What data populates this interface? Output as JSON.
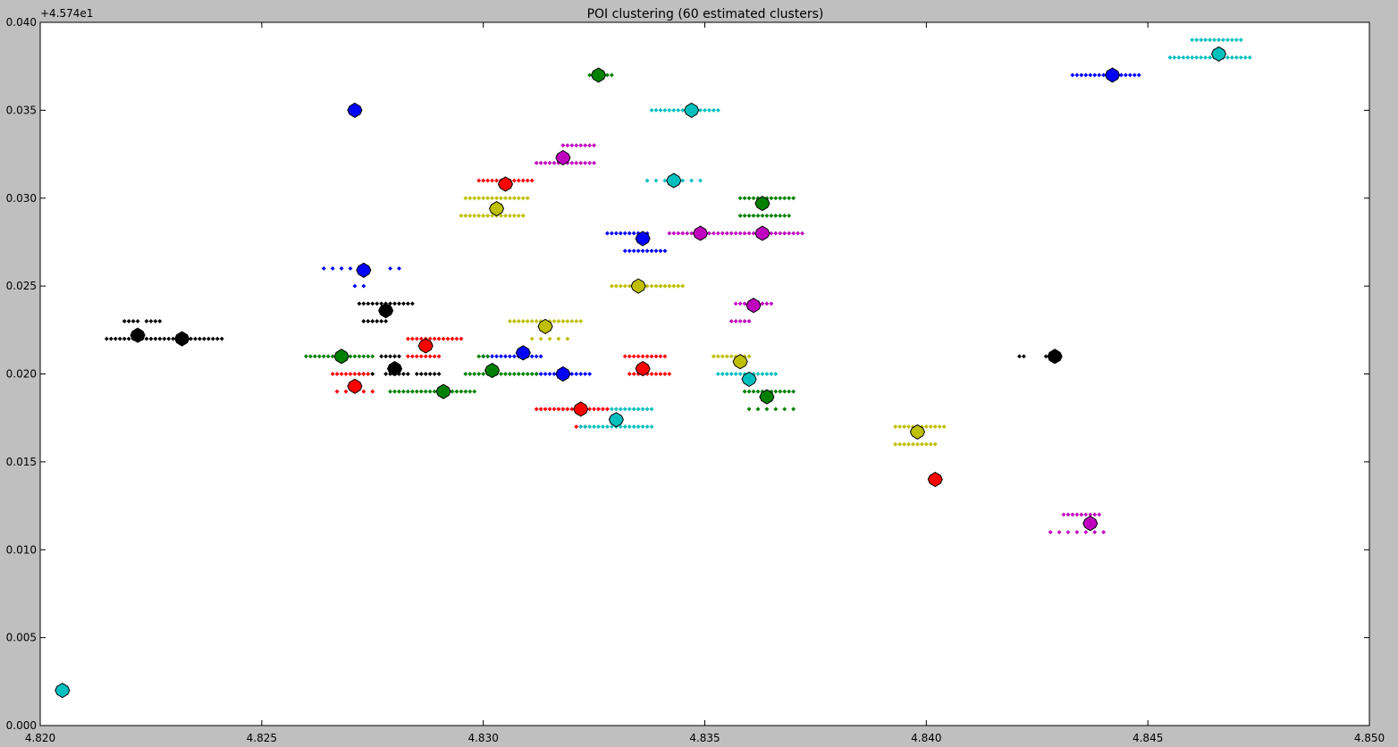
{
  "chart_data": {
    "type": "scatter",
    "title": "POI clustering (60 estimated clusters)",
    "xlabel": "",
    "ylabel": "",
    "xlim": [
      4.82,
      4.85
    ],
    "ylim": [
      0.0,
      0.04
    ],
    "y_offset_label": "+4.574e1",
    "x_ticks": [
      "4.820",
      "4.825",
      "4.830",
      "4.835",
      "4.840",
      "4.845",
      "4.850"
    ],
    "y_ticks": [
      "0.000",
      "0.005",
      "0.010",
      "0.015",
      "0.020",
      "0.025",
      "0.030",
      "0.035",
      "0.040"
    ],
    "grid": false,
    "legend": "none",
    "colors": {
      "b": "#0000ff",
      "g": "#008000",
      "r": "#ff0000",
      "c": "#00bfbf",
      "m": "#bf00bf",
      "y": "#bfbf00",
      "k": "#000000"
    },
    "point_groups": [
      {
        "color": "k",
        "y": 0.022,
        "x_from": 4.8215,
        "x_to": 4.8238,
        "step": 0.0001
      },
      {
        "color": "k",
        "y": 0.022,
        "x_from": 4.8239,
        "x_to": 4.8241,
        "step": 0.0001
      },
      {
        "color": "k",
        "y": 0.023,
        "x_from": 4.8219,
        "x_to": 4.8222,
        "step": 0.0001
      },
      {
        "color": "k",
        "y": 0.023,
        "x_from": 4.8224,
        "x_to": 4.8227,
        "step": 0.0001
      },
      {
        "color": "k",
        "y": 0.024,
        "x_from": 4.8272,
        "x_to": 4.8284,
        "step": 0.0001
      },
      {
        "color": "k",
        "y": 0.023,
        "x_from": 4.8273,
        "x_to": 4.8278,
        "step": 0.0001
      },
      {
        "color": "k",
        "y": 0.021,
        "x_from": 4.8277,
        "x_to": 4.8281,
        "step": 0.0001
      },
      {
        "color": "k",
        "y": 0.02,
        "x_from": 4.8272,
        "x_to": 4.8275,
        "step": 0.0001
      },
      {
        "color": "k",
        "y": 0.02,
        "x_from": 4.8278,
        "x_to": 4.8283,
        "step": 0.0001
      },
      {
        "color": "k",
        "y": 0.02,
        "x_from": 4.8285,
        "x_to": 4.829,
        "step": 0.0001
      },
      {
        "color": "k",
        "y": 0.021,
        "x_from": 4.8421,
        "x_to": 4.8422,
        "step": 0.0001
      },
      {
        "color": "k",
        "y": 0.021,
        "x_from": 4.8427,
        "x_to": 4.8429,
        "step": 0.0001
      },
      {
        "color": "b",
        "y": 0.026,
        "x_from": 4.8264,
        "x_to": 4.8274,
        "step": 0.0002
      },
      {
        "color": "b",
        "y": 0.026,
        "x_from": 4.8279,
        "x_to": 4.8281,
        "step": 0.0002
      },
      {
        "color": "b",
        "y": 0.025,
        "x_from": 4.8271,
        "x_to": 4.8273,
        "step": 0.0002
      },
      {
        "color": "b",
        "y": 0.021,
        "x_from": 4.83,
        "x_to": 4.8313,
        "step": 0.0001
      },
      {
        "color": "b",
        "y": 0.02,
        "x_from": 4.8312,
        "x_to": 4.8324,
        "step": 0.0001
      },
      {
        "color": "b",
        "y": 0.028,
        "x_from": 4.8328,
        "x_to": 4.8337,
        "step": 0.0001
      },
      {
        "color": "b",
        "y": 0.027,
        "x_from": 4.8332,
        "x_to": 4.8341,
        "step": 0.0001
      },
      {
        "color": "b",
        "y": 0.037,
        "x_from": 4.8433,
        "x_to": 4.8448,
        "step": 0.0001
      },
      {
        "color": "g",
        "y": 0.021,
        "x_from": 4.826,
        "x_to": 4.8275,
        "step": 0.0001
      },
      {
        "color": "g",
        "y": 0.019,
        "x_from": 4.8279,
        "x_to": 4.8298,
        "step": 0.0001
      },
      {
        "color": "g",
        "y": 0.02,
        "x_from": 4.8296,
        "x_to": 4.8312,
        "step": 0.0001
      },
      {
        "color": "g",
        "y": 0.021,
        "x_from": 4.8299,
        "x_to": 4.8301,
        "step": 0.0001
      },
      {
        "color": "g",
        "y": 0.037,
        "x_from": 4.8324,
        "x_to": 4.8329,
        "step": 0.0001
      },
      {
        "color": "g",
        "y": 0.03,
        "x_from": 4.8358,
        "x_to": 4.837,
        "step": 0.0001
      },
      {
        "color": "g",
        "y": 0.029,
        "x_from": 4.8358,
        "x_to": 4.8369,
        "step": 0.0001
      },
      {
        "color": "g",
        "y": 0.019,
        "x_from": 4.8359,
        "x_to": 4.837,
        "step": 0.0001
      },
      {
        "color": "g",
        "y": 0.018,
        "x_from": 4.836,
        "x_to": 4.837,
        "step": 0.0002
      },
      {
        "color": "r",
        "y": 0.02,
        "x_from": 4.8266,
        "x_to": 4.8274,
        "step": 0.0001
      },
      {
        "color": "r",
        "y": 0.019,
        "x_from": 4.8267,
        "x_to": 4.8274,
        "step": 0.0002
      },
      {
        "color": "r",
        "y": 0.022,
        "x_from": 4.8283,
        "x_to": 4.8295,
        "step": 0.0001
      },
      {
        "color": "r",
        "y": 0.021,
        "x_from": 4.8283,
        "x_to": 4.829,
        "step": 0.0001
      },
      {
        "color": "r",
        "y": 0.031,
        "x_from": 4.8299,
        "x_to": 4.8311,
        "step": 0.0001
      },
      {
        "color": "r",
        "y": 0.018,
        "x_from": 4.8312,
        "x_to": 4.8328,
        "step": 0.0001
      },
      {
        "color": "r",
        "y": 0.017,
        "x_from": 4.8321,
        "x_to": 4.8323,
        "step": 0.0001
      },
      {
        "color": "r",
        "y": 0.021,
        "x_from": 4.8332,
        "x_to": 4.8341,
        "step": 0.0001
      },
      {
        "color": "r",
        "y": 0.02,
        "x_from": 4.8333,
        "x_to": 4.8342,
        "step": 0.0001
      },
      {
        "color": "c",
        "y": 0.017,
        "x_from": 4.8322,
        "x_to": 4.8338,
        "step": 0.0001
      },
      {
        "color": "c",
        "y": 0.018,
        "x_from": 4.8329,
        "x_to": 4.8338,
        "step": 0.0001
      },
      {
        "color": "c",
        "y": 0.035,
        "x_from": 4.8338,
        "x_to": 4.8353,
        "step": 0.0001
      },
      {
        "color": "c",
        "y": 0.031,
        "x_from": 4.8337,
        "x_to": 4.835,
        "step": 0.0002
      },
      {
        "color": "c",
        "y": 0.02,
        "x_from": 4.8353,
        "x_to": 4.8366,
        "step": 0.0001
      },
      {
        "color": "c",
        "y": 0.039,
        "x_from": 4.846,
        "x_to": 4.8471,
        "step": 0.0001
      },
      {
        "color": "c",
        "y": 0.038,
        "x_from": 4.8455,
        "x_to": 4.8473,
        "step": 0.0001
      },
      {
        "color": "m",
        "y": 0.033,
        "x_from": 4.8318,
        "x_to": 4.8325,
        "step": 0.0001
      },
      {
        "color": "m",
        "y": 0.032,
        "x_from": 4.8312,
        "x_to": 4.8325,
        "step": 0.0001
      },
      {
        "color": "m",
        "y": 0.028,
        "x_from": 4.8342,
        "x_to": 4.8372,
        "step": 0.0001
      },
      {
        "color": "m",
        "y": 0.024,
        "x_from": 4.8357,
        "x_to": 4.8365,
        "step": 0.0001
      },
      {
        "color": "m",
        "y": 0.023,
        "x_from": 4.8356,
        "x_to": 4.836,
        "step": 0.0001
      },
      {
        "color": "m",
        "y": 0.012,
        "x_from": 4.8431,
        "x_to": 4.8439,
        "step": 0.0001
      },
      {
        "color": "m",
        "y": 0.011,
        "x_from": 4.8428,
        "x_to": 4.8441,
        "step": 0.0002
      },
      {
        "color": "y",
        "y": 0.03,
        "x_from": 4.8296,
        "x_to": 4.831,
        "step": 0.0001
      },
      {
        "color": "y",
        "y": 0.029,
        "x_from": 4.8295,
        "x_to": 4.8309,
        "step": 0.0001
      },
      {
        "color": "y",
        "y": 0.023,
        "x_from": 4.8306,
        "x_to": 4.8322,
        "step": 0.0001
      },
      {
        "color": "y",
        "y": 0.022,
        "x_from": 4.8311,
        "x_to": 4.8318,
        "step": 0.0002
      },
      {
        "color": "y",
        "y": 0.025,
        "x_from": 4.8329,
        "x_to": 4.8344,
        "step": 0.0001
      },
      {
        "color": "y",
        "y": 0.025,
        "x_from": 4.8339,
        "x_to": 4.8345,
        "step": 0.0001
      },
      {
        "color": "y",
        "y": 0.021,
        "x_from": 4.8352,
        "x_to": 4.836,
        "step": 0.0001
      },
      {
        "color": "y",
        "y": 0.017,
        "x_from": 4.8393,
        "x_to": 4.8404,
        "step": 0.0001
      },
      {
        "color": "y",
        "y": 0.016,
        "x_from": 4.8393,
        "x_to": 4.8402,
        "step": 0.0001
      }
    ],
    "centers": [
      {
        "color": "k",
        "x": 4.8222,
        "y": 0.0222
      },
      {
        "color": "k",
        "x": 4.8232,
        "y": 0.022
      },
      {
        "color": "k",
        "x": 4.8278,
        "y": 0.0236
      },
      {
        "color": "k",
        "x": 4.828,
        "y": 0.0203
      },
      {
        "color": "k",
        "x": 4.8429,
        "y": 0.021
      },
      {
        "color": "b",
        "x": 4.8271,
        "y": 0.035
      },
      {
        "color": "b",
        "x": 4.8273,
        "y": 0.0259
      },
      {
        "color": "b",
        "x": 4.8309,
        "y": 0.0212
      },
      {
        "color": "b",
        "x": 4.8318,
        "y": 0.02
      },
      {
        "color": "b",
        "x": 4.8336,
        "y": 0.0277
      },
      {
        "color": "b",
        "x": 4.8442,
        "y": 0.037
      },
      {
        "color": "g",
        "x": 4.8268,
        "y": 0.021
      },
      {
        "color": "g",
        "x": 4.8291,
        "y": 0.019
      },
      {
        "color": "g",
        "x": 4.8302,
        "y": 0.0202
      },
      {
        "color": "g",
        "x": 4.8326,
        "y": 0.037
      },
      {
        "color": "g",
        "x": 4.8363,
        "y": 0.0297
      },
      {
        "color": "g",
        "x": 4.8364,
        "y": 0.0187
      },
      {
        "color": "r",
        "x": 4.8271,
        "y": 0.0193
      },
      {
        "color": "r",
        "x": 4.8287,
        "y": 0.0216
      },
      {
        "color": "r",
        "x": 4.8305,
        "y": 0.0308
      },
      {
        "color": "r",
        "x": 4.8322,
        "y": 0.018
      },
      {
        "color": "r",
        "x": 4.8336,
        "y": 0.0203
      },
      {
        "color": "r",
        "x": 4.8402,
        "y": 0.014
      },
      {
        "color": "c",
        "x": 4.8205,
        "y": 0.002
      },
      {
        "color": "c",
        "x": 4.833,
        "y": 0.0174
      },
      {
        "color": "c",
        "x": 4.8343,
        "y": 0.031
      },
      {
        "color": "c",
        "x": 4.8347,
        "y": 0.035
      },
      {
        "color": "c",
        "x": 4.836,
        "y": 0.0197
      },
      {
        "color": "c",
        "x": 4.8466,
        "y": 0.0382
      },
      {
        "color": "m",
        "x": 4.8318,
        "y": 0.0323
      },
      {
        "color": "m",
        "x": 4.8349,
        "y": 0.028
      },
      {
        "color": "m",
        "x": 4.8361,
        "y": 0.0239
      },
      {
        "color": "m",
        "x": 4.8363,
        "y": 0.028
      },
      {
        "color": "m",
        "x": 4.8437,
        "y": 0.0115
      },
      {
        "color": "y",
        "x": 4.8303,
        "y": 0.0294
      },
      {
        "color": "y",
        "x": 4.8314,
        "y": 0.0227
      },
      {
        "color": "y",
        "x": 4.8335,
        "y": 0.025
      },
      {
        "color": "y",
        "x": 4.8358,
        "y": 0.0207
      },
      {
        "color": "y",
        "x": 4.8398,
        "y": 0.0167
      }
    ]
  }
}
